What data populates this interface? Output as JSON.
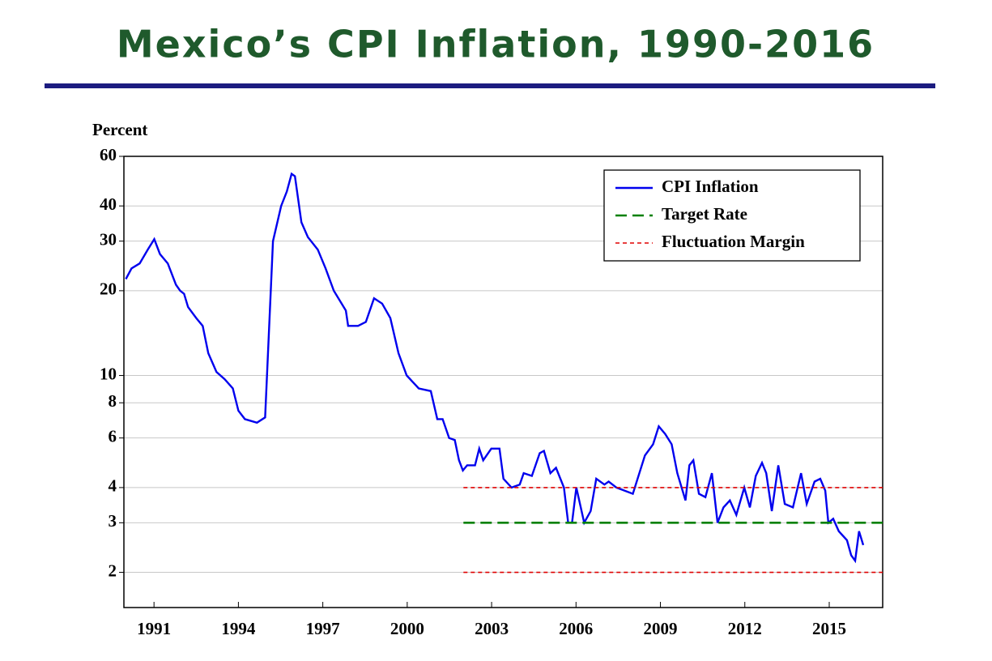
{
  "chart_data": {
    "type": "line",
    "title": "Mexico’s CPI Inflation, 1990-2016",
    "ylabel": "Percent",
    "log": true,
    "grid": true,
    "legend": "upper right",
    "xlim": [
      1989.93,
      2016.9
    ],
    "xticks": [
      1991,
      1994,
      1997,
      2000,
      2003,
      2006,
      2009,
      2012,
      2015
    ],
    "ylim": [
      1.5,
      60
    ],
    "yticks": [
      2,
      3,
      4,
      6,
      8,
      10,
      20,
      30,
      40,
      60
    ],
    "series": [
      {
        "name": "CPI Inflation",
        "color": "#0000ee",
        "dash": "none",
        "x": [
          1990.0,
          1990.2,
          1990.49,
          1990.78,
          1990.92,
          1991.01,
          1991.21,
          1991.49,
          1991.78,
          1991.93,
          1992.07,
          1992.21,
          1992.5,
          1992.73,
          1992.93,
          1993.22,
          1993.51,
          1993.8,
          1994.0,
          1994.23,
          1994.66,
          1994.95,
          1995.23,
          1995.52,
          1995.72,
          1995.89,
          1996.01,
          1996.24,
          1996.47,
          1996.82,
          1997.1,
          1997.39,
          1997.82,
          1997.9,
          1998.25,
          1998.53,
          1998.82,
          1999.11,
          1999.4,
          1999.69,
          1999.98,
          2000.41,
          2000.84,
          2001.07,
          2001.26,
          2001.49,
          2001.69,
          2001.84,
          2001.98,
          2002.13,
          2002.41,
          2002.56,
          2002.7,
          2002.99,
          2003.28,
          2003.42,
          2003.71,
          2004.0,
          2004.14,
          2004.43,
          2004.71,
          2004.86,
          2005.09,
          2005.29,
          2005.57,
          2005.72,
          2005.86,
          2006.01,
          2006.29,
          2006.52,
          2006.72,
          2007.01,
          2007.16,
          2007.44,
          2007.73,
          2008.02,
          2008.45,
          2008.74,
          2008.94,
          2009.17,
          2009.4,
          2009.6,
          2009.89,
          2010.03,
          2010.17,
          2010.37,
          2010.6,
          2010.83,
          2011.03,
          2011.24,
          2011.47,
          2011.7,
          2011.98,
          2012.18,
          2012.39,
          2012.61,
          2012.76,
          2012.96,
          2013.19,
          2013.42,
          2013.71,
          2014.0,
          2014.2,
          2014.48,
          2014.68,
          2014.86,
          2014.97,
          2015.14,
          2015.34,
          2015.63,
          2015.78,
          2015.92,
          2016.06,
          2016.21
        ],
        "values": [
          22,
          24,
          25,
          28,
          29.5,
          30.5,
          27,
          25,
          21,
          20,
          19.5,
          17.5,
          16,
          15,
          12,
          10.3,
          9.7,
          9,
          7.5,
          7,
          6.8,
          7.1,
          30,
          40,
          45,
          52,
          51,
          35,
          31,
          28,
          24,
          20,
          17,
          15,
          15,
          15.5,
          18.8,
          18,
          16,
          12,
          10,
          9,
          8.8,
          7,
          7,
          6,
          5.9,
          5,
          4.6,
          4.8,
          4.8,
          5.5,
          5,
          5.5,
          5.5,
          4.3,
          4.0,
          4.1,
          4.5,
          4.4,
          5.3,
          5.4,
          4.5,
          4.7,
          4.0,
          3.0,
          3.0,
          4.0,
          3.0,
          3.3,
          4.3,
          4.1,
          4.2,
          4.0,
          3.9,
          3.8,
          5.2,
          5.7,
          6.6,
          6.2,
          5.7,
          4.5,
          3.6,
          4.8,
          5.0,
          3.8,
          3.7,
          4.5,
          3.0,
          3.4,
          3.6,
          3.2,
          4.0,
          3.4,
          4.4,
          4.9,
          4.5,
          3.3,
          4.8,
          3.5,
          3.4,
          4.5,
          3.5,
          4.2,
          4.3,
          3.9,
          3.0,
          3.1,
          2.8,
          2.6,
          2.3,
          2.2,
          2.8,
          2.5
        ]
      },
      {
        "name": "Target Rate",
        "color": "#008000",
        "dash": "14,7",
        "x": [
          2002,
          2016.9
        ],
        "values": [
          3,
          3
        ]
      },
      {
        "name": "Fluctuation Margin",
        "color": "#e00000",
        "dash": "5,4",
        "x": [
          2002,
          2016.9,
          2016.9,
          2002,
          2016.9
        ],
        "values": [
          4,
          4,
          null,
          2,
          2
        ]
      }
    ]
  }
}
